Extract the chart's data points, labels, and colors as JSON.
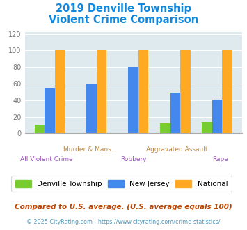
{
  "title_line1": "2019 Denville Township",
  "title_line2": "Violent Crime Comparison",
  "categories": [
    "All Violent Crime",
    "Murder & Mans...",
    "Robbery",
    "Aggravated Assault",
    "Rape"
  ],
  "denville": [
    10,
    0,
    0,
    12,
    14
  ],
  "new_jersey": [
    55,
    60,
    80,
    49,
    41
  ],
  "national": [
    100,
    100,
    100,
    100,
    100
  ],
  "color_denville": "#77cc33",
  "color_nj": "#4488ee",
  "color_national": "#ffaa22",
  "ylabel_ticks": [
    0,
    20,
    40,
    60,
    80,
    100,
    120
  ],
  "ylim": [
    0,
    122
  ],
  "legend_labels": [
    "Denville Township",
    "New Jersey",
    "National"
  ],
  "footnote1": "Compared to U.S. average. (U.S. average equals 100)",
  "footnote2": "© 2025 CityRating.com - https://www.cityrating.com/crime-statistics/",
  "bg_color": "#deeaee",
  "title_color": "#1188dd",
  "cat_color_upper": "#bb8844",
  "cat_color_lower": "#9955bb",
  "footnote1_color": "#bb4400",
  "footnote2_color": "#5599bb"
}
